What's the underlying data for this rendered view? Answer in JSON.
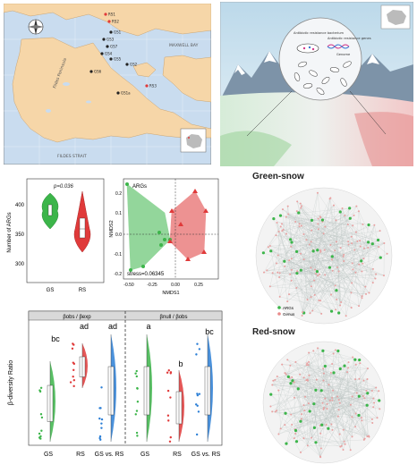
{
  "colors": {
    "sea": "#c9dcef",
    "land": "#f6d6a8",
    "green": "#3cb54a",
    "red": "#e03a3a",
    "blue": "#2c7fd6",
    "grid": "#aaaaaa"
  },
  "map": {
    "labels": {
      "fildes": "Fildes Peninsula",
      "maxwell": "MAXWELL BAY",
      "strait": "FILDES STRAIT"
    },
    "sites": [
      "RS1",
      "RS2",
      "GS1",
      "GS3",
      "GS7",
      "GS4",
      "GS5",
      "GS6",
      "GS2",
      "RS3",
      "GS1a"
    ],
    "north_icon": "compass-icon",
    "inset_icon": "antarctica-inset-icon"
  },
  "illustration": {
    "bubble_labels": {
      "arb": "Antibiotic resistance bacterium",
      "arg": "Antibiotic resistance genes",
      "genome": "Genome"
    },
    "inset_icon": "antarctica-inset-icon"
  },
  "violin": {
    "pvalue": "p=0.036",
    "ylabel": "Number of ARGs",
    "yticks": [
      "300",
      "350",
      "400"
    ],
    "xticks": [
      "GS",
      "RS"
    ]
  },
  "nmds": {
    "title": "ARGs",
    "xlabel": "NMDS1",
    "ylabel": "NMDS2",
    "stress": "stress=0.06345",
    "xticks": [
      "-0.50",
      "-0.25",
      "0.00",
      "0.25"
    ],
    "yticks": [
      "0.2",
      "0.1",
      "0.0",
      "-0.1",
      "-0.2"
    ]
  },
  "beta": {
    "ylabel": "β-diversity Ratio",
    "facet_left": "βobs / βexp",
    "facet_right": "βnull / βobs",
    "groups": [
      "GS",
      "RS",
      "GS vs. RS"
    ],
    "letters_left": [
      "bc",
      "ad",
      "ad"
    ],
    "letters_right": [
      "a",
      "b",
      "bc"
    ]
  },
  "network": {
    "title_green": "Green-snow",
    "title_red": "Red-snow",
    "legend": [
      "ARGs",
      "Genus"
    ]
  }
}
